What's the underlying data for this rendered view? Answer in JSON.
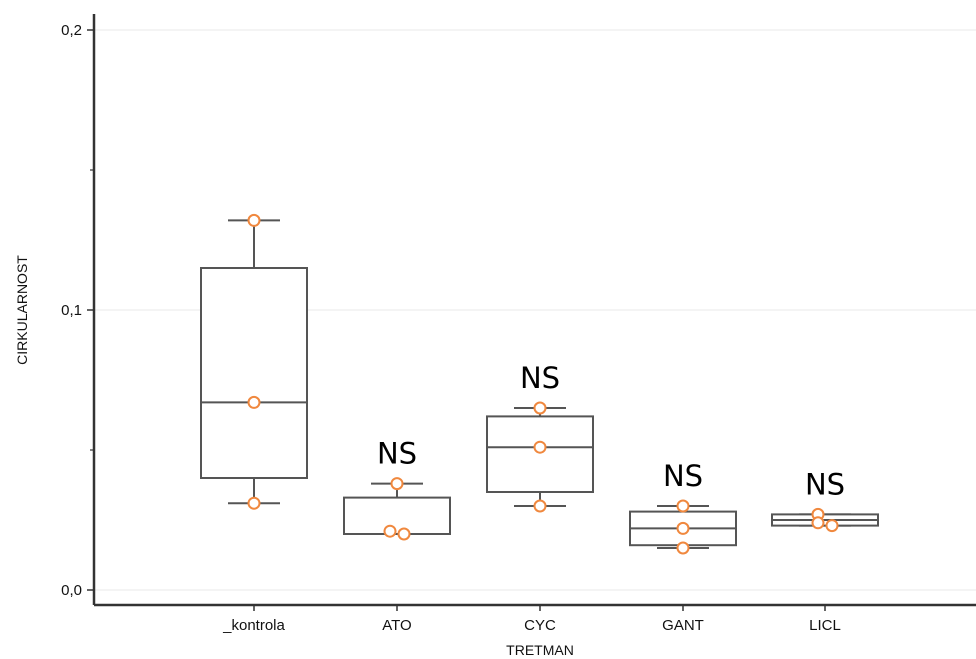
{
  "chart_data": {
    "type": "box",
    "xlabel": "TRETMAN",
    "ylabel": "CIRKULARNOST",
    "ylim": [
      0,
      0.2
    ],
    "yticks": [
      "0,0",
      "0,1",
      "0,2"
    ],
    "ytick_values": [
      0,
      0.1,
      0.2
    ],
    "grid": true,
    "categories": [
      "_kontrola",
      "ATO",
      "CYC",
      "GANT",
      "LICL"
    ],
    "boxes": [
      {
        "category": "_kontrola",
        "whisker_low": 0.031,
        "q1": 0.04,
        "median": 0.067,
        "q3": 0.115,
        "whisker_high": 0.132,
        "points": [
          0.132,
          0.067,
          0.031
        ],
        "annotation": ""
      },
      {
        "category": "ATO",
        "whisker_low": 0.02,
        "q1": 0.02,
        "median": 0.02,
        "q3": 0.033,
        "whisker_high": 0.038,
        "points": [
          0.038,
          0.02,
          0.021
        ],
        "annotation": "NS"
      },
      {
        "category": "CYC",
        "whisker_low": 0.03,
        "q1": 0.035,
        "median": 0.051,
        "q3": 0.062,
        "whisker_high": 0.065,
        "points": [
          0.065,
          0.051,
          0.03
        ],
        "annotation": "NS"
      },
      {
        "category": "GANT",
        "whisker_low": 0.015,
        "q1": 0.016,
        "median": 0.022,
        "q3": 0.028,
        "whisker_high": 0.03,
        "points": [
          0.03,
          0.022,
          0.015
        ],
        "annotation": "NS"
      },
      {
        "category": "LICL",
        "whisker_low": 0.023,
        "q1": 0.023,
        "median": 0.025,
        "q3": 0.027,
        "whisker_high": 0.027,
        "points": [
          0.027,
          0.023,
          0.024
        ],
        "annotation": "NS"
      }
    ],
    "colors": {
      "box_stroke": "#555555",
      "point_stroke": "#f0883e",
      "axis": "#333333",
      "grid": "#eeeeee"
    }
  }
}
